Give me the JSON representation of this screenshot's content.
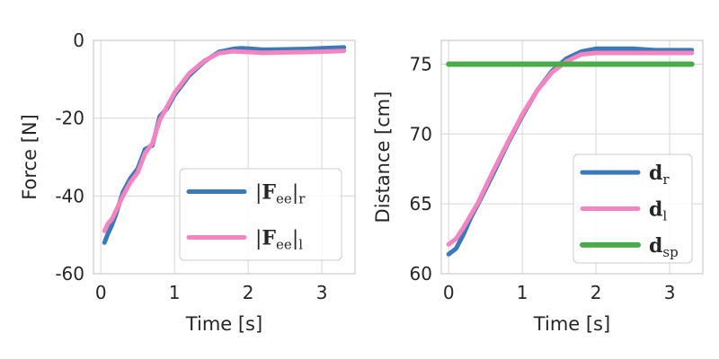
{
  "chart_data": [
    {
      "type": "line",
      "xlabel": "Time [s]",
      "ylabel": "Force [N]",
      "xlim": [
        -0.1,
        3.45
      ],
      "ylim": [
        -60,
        0
      ],
      "xticks": [
        0,
        1,
        2,
        3
      ],
      "xtick_labels": [
        "0",
        "1",
        "2",
        "3"
      ],
      "yticks": [
        0,
        -20,
        -40,
        -60
      ],
      "ytick_labels": [
        "0",
        "-20",
        "-40",
        "-60"
      ],
      "grid": true,
      "legend_position": "lower-right",
      "series": [
        {
          "name": "|Fee|r",
          "legend": {
            "pre": "|",
            "main": "F",
            "sub": "ee",
            "post": "|",
            "sub2": "r"
          },
          "color": "#3a7ab8",
          "width": 5,
          "x": [
            0.05,
            0.1,
            0.15,
            0.2,
            0.3,
            0.4,
            0.5,
            0.6,
            0.7,
            0.8,
            0.9,
            1.0,
            1.2,
            1.4,
            1.6,
            1.8,
            1.9,
            2.0,
            2.2,
            2.5,
            2.8,
            3.0,
            3.3
          ],
          "y": [
            -52,
            -49.5,
            -47.5,
            -45,
            -39,
            -35.5,
            -33,
            -28,
            -27,
            -19.5,
            -17.5,
            -14,
            -9,
            -5.5,
            -3,
            -2.2,
            -2.0,
            -2.1,
            -2.4,
            -2.3,
            -2.2,
            -2.0,
            -1.8
          ]
        },
        {
          "name": "|Fee|l",
          "legend": {
            "pre": "|",
            "main": "F",
            "sub": "ee",
            "post": "|",
            "sub2": "l"
          },
          "color": "#f485c0",
          "width": 5,
          "x": [
            0.05,
            0.1,
            0.15,
            0.2,
            0.3,
            0.4,
            0.5,
            0.6,
            0.7,
            0.8,
            0.9,
            1.0,
            1.2,
            1.4,
            1.6,
            1.8,
            1.9,
            2.0,
            2.2,
            2.5,
            2.8,
            3.0,
            3.3
          ],
          "y": [
            -49,
            -47,
            -46,
            -44,
            -40,
            -36.5,
            -34,
            -29,
            -26.5,
            -20.5,
            -17,
            -13.5,
            -8.5,
            -5.3,
            -3.3,
            -2.8,
            -2.9,
            -3.0,
            -3.2,
            -3.1,
            -3.0,
            -2.9,
            -2.7
          ]
        }
      ]
    },
    {
      "type": "line",
      "xlabel": "Time [s]",
      "ylabel": "Distance [cm]",
      "xlim": [
        -0.1,
        3.45
      ],
      "ylim": [
        60,
        76.7
      ],
      "xticks": [
        0,
        1,
        2,
        3
      ],
      "xtick_labels": [
        "0",
        "1",
        "2",
        "3"
      ],
      "yticks": [
        60,
        65,
        70,
        75
      ],
      "ytick_labels": [
        "60",
        "65",
        "70",
        "75"
      ],
      "grid": true,
      "legend_position": "lower-right",
      "series": [
        {
          "name": "dr",
          "legend": {
            "pre": "",
            "main": "d",
            "sub": "r",
            "post": "",
            "sub2": ""
          },
          "color": "#3a7ab8",
          "width": 5,
          "x": [
            0,
            0.1,
            0.2,
            0.3,
            0.4,
            0.6,
            0.8,
            1.0,
            1.2,
            1.4,
            1.6,
            1.8,
            2.0,
            2.2,
            2.5,
            2.8,
            3.0,
            3.3
          ],
          "y": [
            61.4,
            61.8,
            62.8,
            64.0,
            65.0,
            67.1,
            69.3,
            71.3,
            73.1,
            74.5,
            75.4,
            75.9,
            76.1,
            76.1,
            76.1,
            76.0,
            76.0,
            76.0
          ]
        },
        {
          "name": "dl",
          "legend": {
            "pre": "",
            "main": "d",
            "sub": "l",
            "post": "",
            "sub2": ""
          },
          "color": "#f485c0",
          "width": 5,
          "x": [
            0,
            0.1,
            0.2,
            0.3,
            0.4,
            0.6,
            0.8,
            1.0,
            1.2,
            1.4,
            1.6,
            1.8,
            2.0,
            2.2,
            2.5,
            2.8,
            3.0,
            3.3
          ],
          "y": [
            62.1,
            62.5,
            63.3,
            64.2,
            65.1,
            67.3,
            69.4,
            71.4,
            73.1,
            74.4,
            75.2,
            75.7,
            75.8,
            75.8,
            75.8,
            75.8,
            75.8,
            75.8
          ]
        },
        {
          "name": "dsp",
          "legend": {
            "pre": "",
            "main": "d",
            "sub": "sp",
            "post": "",
            "sub2": ""
          },
          "color": "#4aab48",
          "width": 6,
          "x": [
            0,
            3.3
          ],
          "y": [
            75,
            75
          ]
        }
      ]
    }
  ]
}
